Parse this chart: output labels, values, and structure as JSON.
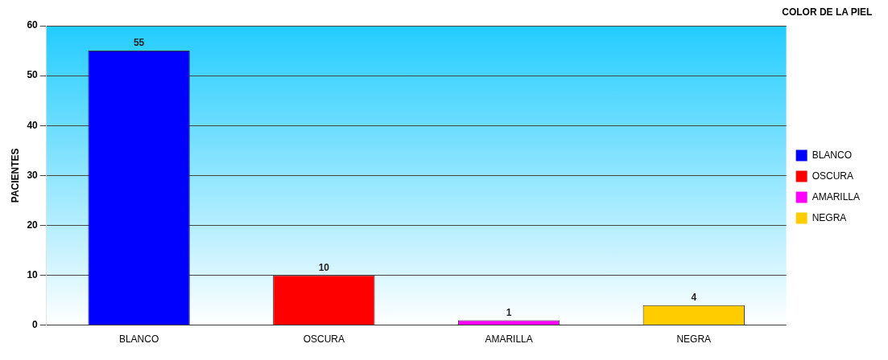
{
  "chart_data": {
    "type": "bar",
    "ylabel": "PACIENTES",
    "legend_title": "COLOR DE LA PIEL",
    "categories": [
      "BLANCO",
      "OSCURA",
      "AMARILLA",
      "NEGRA"
    ],
    "series": [
      {
        "name": "BLANCO",
        "color": "#0000ff",
        "values": [
          55,
          null,
          null,
          null
        ]
      },
      {
        "name": "OSCURA",
        "color": "#ff0000",
        "values": [
          null,
          10,
          null,
          null
        ]
      },
      {
        "name": "AMARILLA",
        "color": "#ff00ff",
        "values": [
          null,
          null,
          1,
          null
        ]
      },
      {
        "name": "NEGRA",
        "color": "#ffcc00",
        "values": [
          null,
          null,
          null,
          4
        ]
      }
    ],
    "ylim": [
      0,
      60
    ],
    "yticks": [
      0,
      10,
      20,
      30,
      40,
      50,
      60
    ],
    "grid": "y",
    "legend": "right",
    "data_labels": true
  }
}
